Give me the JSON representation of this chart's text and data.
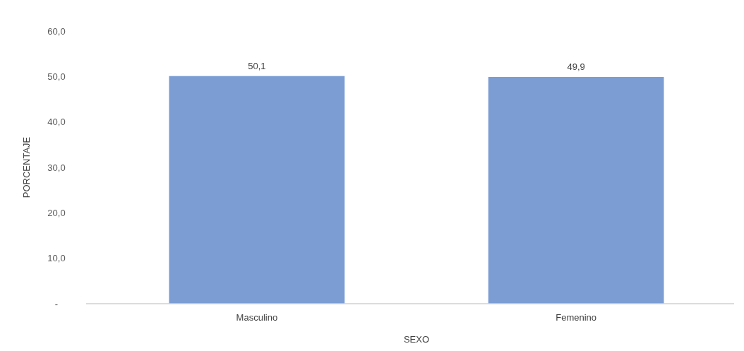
{
  "chart_data": {
    "type": "bar",
    "xlabel": "SEXO",
    "ylabel": "PORCENTAJE",
    "categories": [
      "Masculino",
      "Femenino"
    ],
    "series": [
      {
        "color": "#7b9dd3",
        "values": [
          50.1,
          49.9
        ],
        "value_labels": [
          "50,1",
          "49,9"
        ]
      }
    ],
    "ylim": [
      0,
      60
    ],
    "yticks": [
      {
        "value": 0,
        "label": "-"
      },
      {
        "value": 10,
        "label": "10,0"
      },
      {
        "value": 20,
        "label": "20,0"
      },
      {
        "value": 30,
        "label": "30,0"
      },
      {
        "value": 40,
        "label": "40,0"
      },
      {
        "value": 50,
        "label": "50,0"
      },
      {
        "value": 60,
        "label": "60,0"
      }
    ],
    "grid": false
  }
}
